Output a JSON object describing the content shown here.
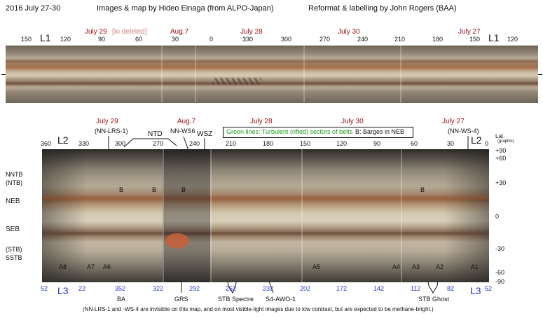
{
  "header": {
    "date_range": "2016 July 27-30",
    "credit_images": "Images & map by Hideo Einaga (from ALPO-Japan)",
    "credit_reformat": "Reformat & labelling by John Rogers (BAA)"
  },
  "top_map": {
    "system_label_left": "L1",
    "system_label_right": "L1",
    "dates": [
      {
        "text": "July 29"
      },
      {
        "text": "[Io deleted]"
      },
      {
        "text": "Aug.7"
      },
      {
        "text": "July 28"
      },
      {
        "text": "July 30"
      },
      {
        "text": "July 27"
      }
    ],
    "ticks": [
      "150",
      "120",
      "90",
      "60",
      "30",
      "0",
      "330",
      "300",
      "270",
      "240",
      "210",
      "180",
      "150",
      "120"
    ]
  },
  "bottom_map": {
    "system_label_top_left": "L2",
    "system_label_top_right": "L2",
    "system_label_bottom_left": "L3",
    "system_label_bottom_right": "L3",
    "dates": [
      {
        "text": "July 29"
      },
      {
        "text": "Aug.7"
      },
      {
        "text": "July 28"
      },
      {
        "text": "July 30"
      },
      {
        "text": "July 27"
      }
    ],
    "top_ticks": [
      "360",
      "330",
      "300",
      "270",
      "240",
      "210",
      "180",
      "150",
      "120",
      "90",
      "60",
      "30",
      "0"
    ],
    "bottom_ticks": [
      "52",
      "22",
      "352",
      "322",
      "292",
      "262",
      "232",
      "202",
      "172",
      "142",
      "112",
      "82",
      "52"
    ],
    "lat_header": "Lat.",
    "lat_subheader": "(graphic)",
    "lat_ticks": [
      "+90",
      "+60",
      "+30",
      "0",
      "-30",
      "-60",
      "-90"
    ],
    "belt_labels": {
      "nntb": "NNTB",
      "ntb": "(NTB)",
      "neb": "NEB",
      "seb": "SEB",
      "stb": "(STB)",
      "sstb": "SSTB"
    },
    "feature_labels": {
      "nn_lrs_1": "(NN-LRS-1)",
      "ntd": "NTD",
      "nn_ws6": "NN-WS6",
      "wsz": "WSZ",
      "nn_ws_4": "(NN-WS-4)",
      "ba": "BA",
      "grs": "GRS",
      "stb_spectre": "STB Spectre",
      "s4_awo_1": "S4-AWO-1",
      "stb_ghost": "STB Ghost"
    },
    "barges": [
      "B",
      "B",
      "B",
      "B"
    ],
    "ovals": [
      "A8",
      "A7",
      "A6",
      "A5",
      "A4",
      "A3",
      "A2",
      "A1"
    ],
    "legend": {
      "green_text": "Green lines:  Turbulent (rifted) sectors of belts",
      "black_text": "B:  Barges in NEB"
    }
  },
  "footnote": "(NN-LRS-1 and -WS-4 are invisible on this map, and on most visible-light images due to low contrast, but are expected to be methane-bright.)",
  "colors": {
    "date_red": "#a01414",
    "system3_blue": "#2233cc",
    "legend_green": "#1a9a1a",
    "grs_orange": "#c8603a"
  }
}
